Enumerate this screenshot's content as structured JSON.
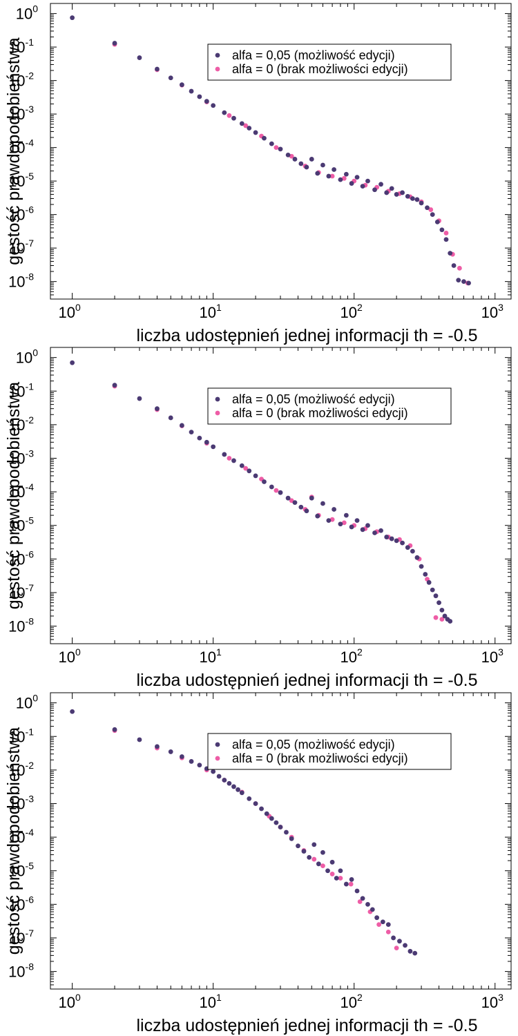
{
  "colors": {
    "series_a": "#4b3a73",
    "series_b": "#ee5da6",
    "axis": "#000000",
    "background": "#ffffff"
  },
  "chart_data": [
    {
      "type": "scatter",
      "xlabel": "liczba udostępnień jednej informacji th = -0.5",
      "ylabel": "gęstość prawdopodobieństwa",
      "xscale": "log",
      "yscale": "log",
      "xlim": [
        0.7,
        1300
      ],
      "ylim": [
        3e-09,
        2
      ],
      "xticks": [
        "10^0",
        "10^1",
        "10^2",
        "10^3"
      ],
      "yticks": [
        "10^0",
        "10^-1",
        "10^-2",
        "10^-3",
        "10^-4",
        "10^-5",
        "10^-6",
        "10^-7",
        "10^-8"
      ],
      "legend_position": "top-right",
      "series": [
        {
          "name": "alfa = 0,05 (możliwość edycji)",
          "x": [
            1,
            2,
            3,
            4,
            5,
            6,
            7,
            8,
            9,
            10,
            12,
            14,
            16,
            18,
            20,
            23,
            26,
            30,
            34,
            38,
            42,
            46,
            50,
            55,
            60,
            66,
            72,
            80,
            88,
            96,
            105,
            115,
            125,
            140,
            155,
            170,
            185,
            200,
            220,
            240,
            260,
            280,
            300,
            330,
            360,
            390,
            420,
            450,
            480,
            510,
            550,
            600,
            650
          ],
          "y": [
            0.75,
            0.13,
            0.048,
            0.022,
            0.012,
            0.0075,
            0.0048,
            0.0033,
            0.0024,
            0.0018,
            0.0011,
            0.00075,
            0.00052,
            0.00038,
            0.00028,
            0.00019,
            0.00013,
            9e-05,
            6e-05,
            4.5e-05,
            3.3e-05,
            2.6e-05,
            4.5e-05,
            1.7e-05,
            3e-05,
            1.4e-05,
            2.2e-05,
            1.1e-05,
            1.6e-05,
            8.5e-06,
            1.3e-05,
            7e-06,
            1e-05,
            5.5e-06,
            8e-06,
            4.5e-06,
            6e-06,
            4e-06,
            4.5e-06,
            3.5e-06,
            3e-06,
            2.8e-06,
            2.2e-06,
            1.6e-06,
            1e-06,
            6e-07,
            3.5e-07,
            1.8e-07,
            7e-08,
            3e-08,
            1.1e-08,
            1e-08,
            9e-09
          ]
        },
        {
          "name": "alfa = 0 (brak możliwości edycji)",
          "x": [
            2,
            4,
            6,
            9,
            13,
            17,
            22,
            28,
            36,
            45,
            56,
            70,
            85,
            100,
            120,
            145,
            175,
            210,
            250,
            300,
            350,
            400,
            450,
            500,
            560,
            640
          ],
          "y": [
            0.12,
            0.021,
            0.0073,
            0.0023,
            0.0009,
            0.00045,
            0.00022,
            0.0001,
            5.5e-05,
            2.8e-05,
            1.8e-05,
            1.4e-05,
            1.2e-05,
            1e-05,
            7.5e-06,
            6.5e-06,
            5e-06,
            4.2e-06,
            3.4e-06,
            2.4e-06,
            1.4e-06,
            6.5e-07,
            2.8e-07,
            6.5e-08,
            2.5e-08,
            9e-09
          ]
        }
      ]
    },
    {
      "type": "scatter",
      "xlabel": "liczba udostępnień jednej informacji th = -0.5",
      "ylabel": "gęstość prawdopodobieństwa",
      "xscale": "log",
      "yscale": "log",
      "xlim": [
        0.7,
        1300
      ],
      "ylim": [
        3e-09,
        2
      ],
      "xticks": [
        "10^0",
        "10^1",
        "10^2",
        "10^3"
      ],
      "yticks": [
        "10^0",
        "10^-1",
        "10^-2",
        "10^-3",
        "10^-4",
        "10^-5",
        "10^-6",
        "10^-7",
        "10^-8"
      ],
      "legend_position": "top-right",
      "series": [
        {
          "name": "alfa = 0,05 (możliwość edycji)",
          "x": [
            1,
            2,
            3,
            4,
            5,
            6,
            7,
            8,
            9,
            10,
            12,
            14,
            16,
            18,
            20,
            23,
            26,
            30,
            34,
            38,
            42,
            46,
            50,
            55,
            60,
            66,
            72,
            80,
            88,
            96,
            105,
            115,
            125,
            140,
            155,
            170,
            185,
            200,
            220,
            240,
            260,
            280,
            300,
            320,
            340,
            360,
            380,
            400,
            420,
            440,
            460,
            480
          ],
          "y": [
            0.7,
            0.15,
            0.06,
            0.03,
            0.016,
            0.0095,
            0.006,
            0.004,
            0.003,
            0.0022,
            0.0013,
            0.00085,
            0.0006,
            0.00042,
            0.0003,
            0.0002,
            0.00014,
            9.5e-05,
            6.5e-05,
            4.8e-05,
            3.5e-05,
            2.7e-05,
            6.5e-05,
            1.9e-05,
            4.5e-05,
            1.4e-05,
            3e-05,
            1.1e-05,
            2e-05,
            9e-06,
            1.4e-05,
            7.5e-06,
            1e-05,
            6e-06,
            7e-06,
            4.5e-06,
            4e-06,
            3.5e-06,
            3e-06,
            2.2e-06,
            1.7e-06,
            1.1e-06,
            6e-07,
            3.5e-07,
            2e-07,
            1.2e-07,
            8e-08,
            5e-08,
            3e-08,
            2e-08,
            1.6e-08,
            1.4e-08
          ]
        },
        {
          "name": "alfa = 0 (brak możliwości edycji)",
          "x": [
            2,
            4,
            6,
            9,
            13,
            17,
            22,
            28,
            36,
            45,
            50,
            56,
            70,
            85,
            100,
            120,
            145,
            175,
            210,
            250,
            290,
            330,
            380,
            420
          ],
          "y": [
            0.14,
            0.028,
            0.0092,
            0.0028,
            0.001,
            0.0005,
            0.00024,
            0.00011,
            5.5e-05,
            3e-05,
            7e-05,
            2e-05,
            1.5e-05,
            1.2e-05,
            1e-05,
            8e-06,
            6.5e-06,
            4.5e-06,
            3.8e-06,
            2.5e-06,
            1e-06,
            2.5e-07,
            1.8e-08,
            1.6e-08
          ]
        }
      ]
    },
    {
      "type": "scatter",
      "xlabel": "liczba udostępnień jednej informacji th = -0.5",
      "ylabel": "gęstość prawdopodobieństwa",
      "xscale": "log",
      "yscale": "log",
      "xlim": [
        0.7,
        1300
      ],
      "ylim": [
        3e-09,
        2
      ],
      "xticks": [
        "10^0",
        "10^1",
        "10^2",
        "10^3"
      ],
      "yticks": [
        "10^0",
        "10^-1",
        "10^-2",
        "10^-3",
        "10^-4",
        "10^-5",
        "10^-6",
        "10^-7",
        "10^-8"
      ],
      "legend_position": "top-right",
      "series": [
        {
          "name": "alfa = 0,05 (możliwość edycji)",
          "x": [
            1,
            2,
            3,
            4,
            5,
            6,
            7,
            8,
            9,
            10,
            11,
            12,
            13,
            14,
            15,
            16,
            18,
            20,
            22,
            24,
            26,
            28,
            30,
            33,
            36,
            40,
            44,
            48,
            52,
            56,
            60,
            65,
            70,
            75,
            80,
            88,
            96,
            105,
            115,
            125,
            135,
            145,
            160,
            175,
            190,
            210,
            230,
            250,
            270
          ],
          "y": [
            0.55,
            0.16,
            0.08,
            0.05,
            0.035,
            0.025,
            0.018,
            0.014,
            0.011,
            0.009,
            0.0065,
            0.005,
            0.004,
            0.0032,
            0.0026,
            0.0021,
            0.0014,
            0.001,
            0.0007,
            0.0005,
            0.00036,
            0.00027,
            0.0002,
            0.00014,
            9e-05,
            5.5e-05,
            3.8e-05,
            2.5e-05,
            6e-05,
            1.6e-05,
            3.5e-05,
            1e-05,
            1.8e-05,
            6e-06,
            1e-05,
            4e-06,
            5.5e-06,
            2.5e-06,
            1.5e-06,
            1e-06,
            7e-07,
            4e-07,
            3e-07,
            2.5e-07,
            1e-07,
            8e-08,
            6e-08,
            4e-08,
            3.5e-08
          ]
        },
        {
          "name": "alfa = 0 (brak możliwości edycji)",
          "x": [
            2,
            4,
            6,
            9,
            12,
            16,
            20,
            25,
            30,
            36,
            44,
            52,
            60,
            70,
            80,
            95,
            110,
            130,
            150,
            175,
            200
          ],
          "y": [
            0.15,
            0.045,
            0.023,
            0.01,
            0.005,
            0.0022,
            0.001,
            0.00042,
            0.0002,
            0.0001,
            4e-05,
            2.2e-05,
            1.4e-05,
            8e-06,
            6e-06,
            4e-06,
            1.2e-06,
            6e-07,
            2.5e-07,
            1.5e-07,
            5e-08
          ]
        }
      ]
    }
  ]
}
